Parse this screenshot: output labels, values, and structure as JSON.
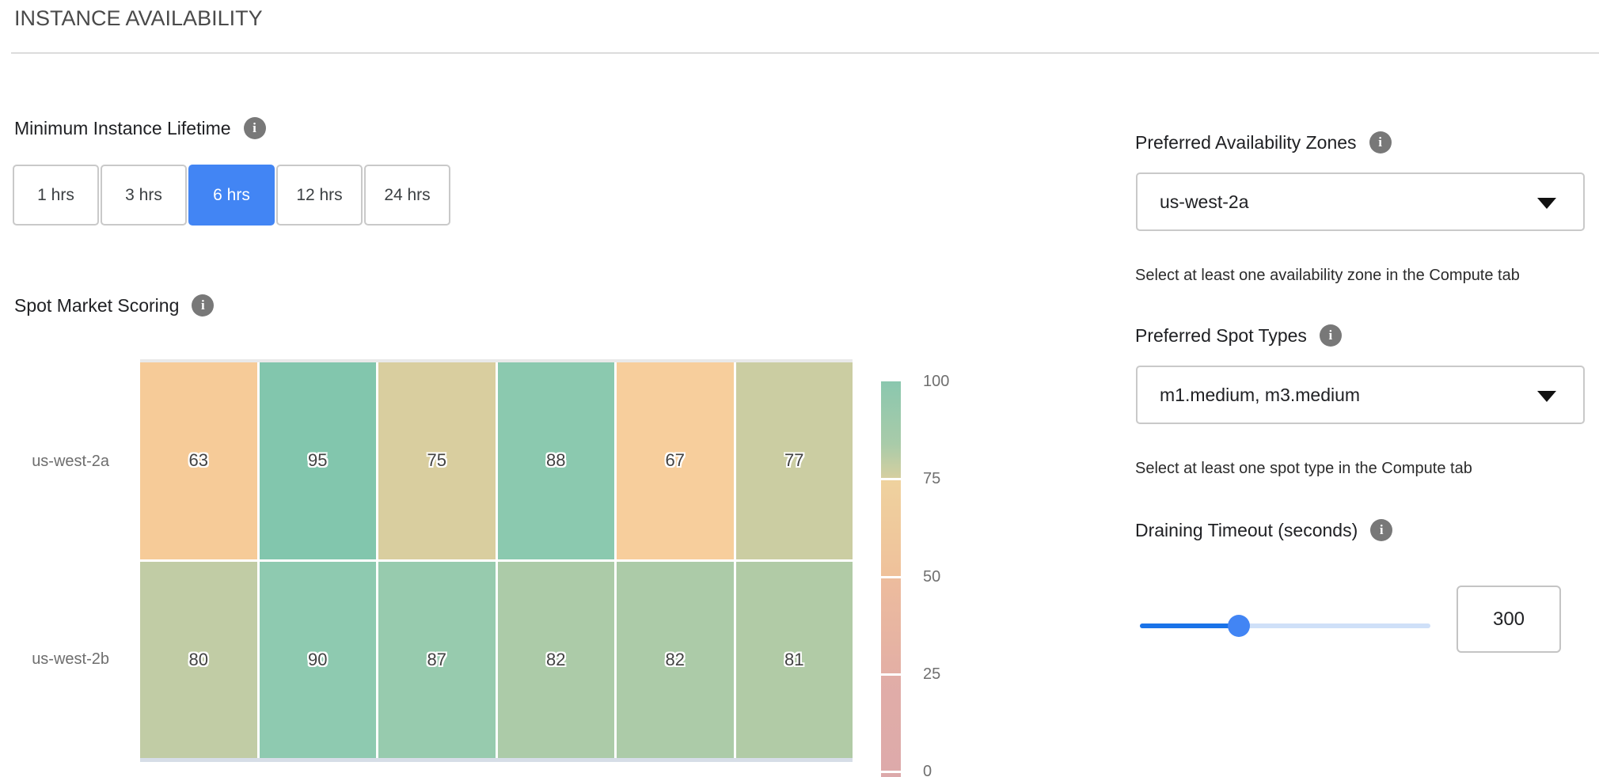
{
  "header": {
    "title": "INSTANCE AVAILABILITY"
  },
  "icons": {
    "info": "i"
  },
  "lifetime": {
    "label": "Minimum Instance Lifetime",
    "options": [
      {
        "label": "1 hrs",
        "selected": false
      },
      {
        "label": "3 hrs",
        "selected": false
      },
      {
        "label": "6 hrs",
        "selected": true
      },
      {
        "label": "12 hrs",
        "selected": false
      },
      {
        "label": "24 hrs",
        "selected": false
      }
    ],
    "selected_color": "#4285f4"
  },
  "spot_scoring": {
    "label": "Spot Market Scoring"
  },
  "chart_data": {
    "type": "heatmap",
    "title": "Spot Market Scoring",
    "rows": [
      "us-west-2a",
      "us-west-2b"
    ],
    "columns": 6,
    "values": [
      [
        63,
        95,
        75,
        88,
        67,
        77
      ],
      [
        80,
        90,
        87,
        82,
        82,
        81
      ]
    ],
    "cell_colors": [
      [
        "#f6cb98",
        "#82c6ad",
        "#d9ce9f",
        "#8bc9af",
        "#f7ce9c",
        "#cbcda2"
      ],
      [
        "#c1cca5",
        "#8ecab0",
        "#97cbae",
        "#accba8",
        "#accba8",
        "#b1cba6"
      ]
    ],
    "colorbar": {
      "ticks": [
        "100",
        "75",
        "50",
        "25",
        "0"
      ],
      "range": [
        0,
        100
      ],
      "gradient_stops": [
        "#8ac7ae",
        "#a9cba9",
        "#d5cfa0",
        "#efd29e",
        "#efc19b",
        "#edbc9d",
        "#e3afa5",
        "#e1ada7",
        "#ddaaaa",
        "#dca9ab"
      ]
    },
    "legend_position": "right",
    "grid": false
  },
  "zones": {
    "label": "Preferred Availability Zones",
    "value": "us-west-2a",
    "helper": "Select at least one availability zone in the Compute tab"
  },
  "spot_types": {
    "label": "Preferred Spot Types",
    "value": "m1.medium, m3.medium",
    "helper": "Select at least one spot type in the Compute tab"
  },
  "draining": {
    "label": "Draining Timeout (seconds)",
    "value": "300",
    "slider_percent": 34,
    "slider_fill_color": "#1a73e8",
    "thumb_color": "#4285f4"
  }
}
